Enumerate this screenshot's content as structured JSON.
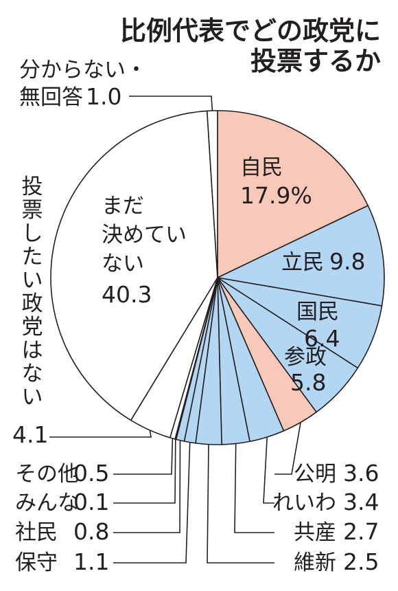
{
  "chart_data": {
    "type": "pie",
    "title": [
      "比例代表でどの政党に",
      "投票するか"
    ],
    "slices": [
      {
        "name": "自民",
        "value": 17.9,
        "value_label": "17.9%",
        "color": "#f8c8b8"
      },
      {
        "name": "立民",
        "value": 9.8,
        "value_label": "9.8",
        "color": "#b3d6f2"
      },
      {
        "name": "国民",
        "value": 6.4,
        "value_label": "6.4",
        "color": "#b3d6f2"
      },
      {
        "name": "参政",
        "value": 5.8,
        "value_label": "5.8",
        "color": "#b3d6f2"
      },
      {
        "name": "公明",
        "value": 3.6,
        "value_label": "3.6",
        "color": "#f8c8b8"
      },
      {
        "name": "れいわ",
        "value": 3.4,
        "value_label": "3.4",
        "color": "#b3d6f2"
      },
      {
        "name": "共産",
        "value": 2.7,
        "value_label": "2.7",
        "color": "#b3d6f2"
      },
      {
        "name": "維新",
        "value": 2.5,
        "value_label": "2.5",
        "color": "#b3d6f2"
      },
      {
        "name": "保守",
        "value": 1.1,
        "value_label": "1.1",
        "color": "#b3d6f2"
      },
      {
        "name": "社民",
        "value": 0.8,
        "value_label": "0.8",
        "color": "#b3d6f2"
      },
      {
        "name": "みんな",
        "value": 0.1,
        "value_label": "0.1",
        "color": "#b3d6f2"
      },
      {
        "name": "その他",
        "value": 0.5,
        "value_label": "0.5",
        "color": "#ffffff"
      },
      {
        "name": "投票したい政党はない",
        "value": 4.1,
        "value_label": "4.1",
        "color": "#ffffff"
      },
      {
        "name": "まだ決めていない",
        "value": 40.3,
        "value_label": "40.3",
        "color": "#ffffff"
      },
      {
        "name": "分からない・無回答",
        "value": 1.0,
        "value_label": "1.0",
        "color": "#ffffff"
      }
    ]
  }
}
